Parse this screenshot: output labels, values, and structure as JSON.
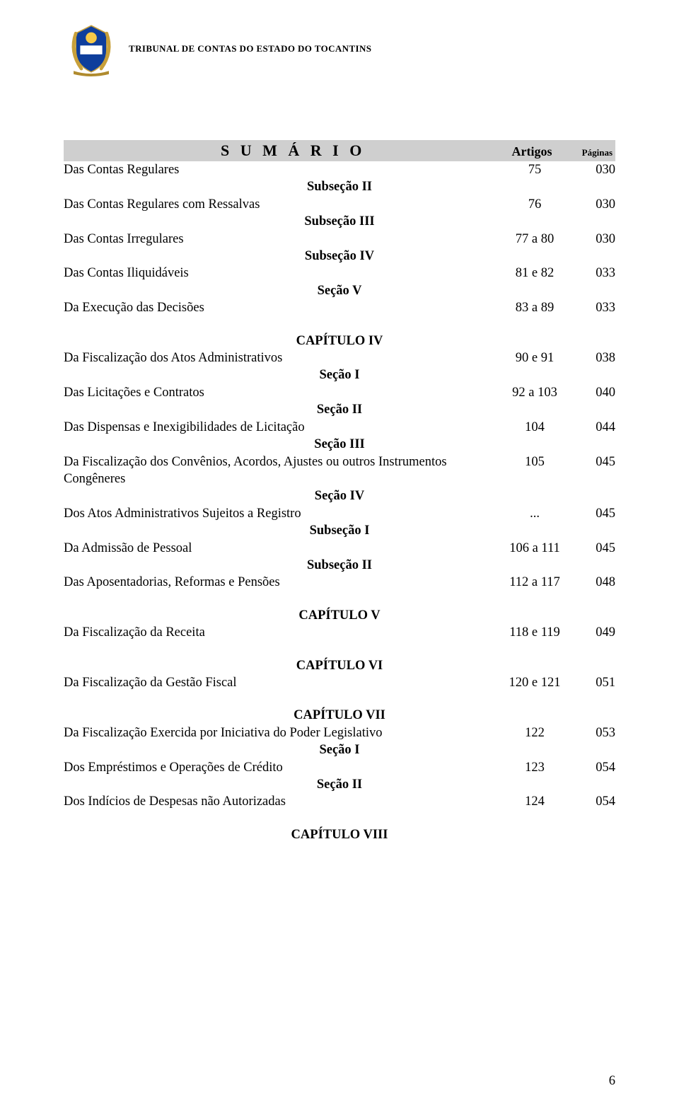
{
  "header": {
    "org_title": "TRIBUNAL DE CONTAS DO ESTADO DO TOCANTINS",
    "logo_colors": {
      "sun": "#f7c948",
      "blue": "#0e3e9c",
      "white": "#ffffff",
      "ribbon": "#b08b2e",
      "wreath": "#c8a03a"
    }
  },
  "title_bar": {
    "title": "S U M Á R I O",
    "col_art": "Artigos",
    "col_pag": "Páginas"
  },
  "lines": [
    {
      "kind": "row",
      "label": "Das Contas Regulares",
      "art": "75",
      "pag": "030"
    },
    {
      "kind": "heading",
      "text": "Subseção II"
    },
    {
      "kind": "row",
      "label": "Das Contas Regulares com Ressalvas",
      "art": "76",
      "pag": "030"
    },
    {
      "kind": "heading",
      "text": "Subseção III"
    },
    {
      "kind": "row",
      "label": "Das Contas Irregulares",
      "art": "77 a 80",
      "pag": "030"
    },
    {
      "kind": "heading",
      "text": "Subseção IV"
    },
    {
      "kind": "row",
      "label": "Das Contas Iliquidáveis",
      "art": "81 e 82",
      "pag": "033"
    },
    {
      "kind": "heading",
      "text": "Seção V"
    },
    {
      "kind": "row",
      "label": "Da Execução das Decisões",
      "art": "83 a 89",
      "pag": "033"
    },
    {
      "kind": "heading",
      "text": "CAPÍTULO IV",
      "gap": true
    },
    {
      "kind": "row",
      "label": "Da Fiscalização dos Atos Administrativos",
      "art": "90 e 91",
      "pag": "038"
    },
    {
      "kind": "heading",
      "text": "Seção I"
    },
    {
      "kind": "row",
      "label": "Das Licitações e Contratos",
      "art": "92 a 103",
      "pag": "040"
    },
    {
      "kind": "heading",
      "text": "Seção II"
    },
    {
      "kind": "row",
      "label": "Das Dispensas e Inexigibilidades de Licitação",
      "art": "104",
      "pag": "044"
    },
    {
      "kind": "heading",
      "text": "Seção III"
    },
    {
      "kind": "row",
      "label": "Da Fiscalização dos Convênios, Acordos, Ajustes ou outros Instrumentos Congêneres",
      "art": "105",
      "pag": "045"
    },
    {
      "kind": "heading",
      "text": "Seção IV"
    },
    {
      "kind": "row",
      "label": "Dos Atos Administrativos Sujeitos a Registro",
      "art": "...",
      "pag": "045"
    },
    {
      "kind": "heading",
      "text": "Subseção I"
    },
    {
      "kind": "row",
      "label": "Da Admissão de Pessoal",
      "art": "106 a 111",
      "pag": "045"
    },
    {
      "kind": "heading",
      "text": "Subseção II"
    },
    {
      "kind": "row",
      "label": "Das Aposentadorias, Reformas e Pensões",
      "art": "112 a 117",
      "pag": "048"
    },
    {
      "kind": "heading",
      "text": "CAPÍTULO V",
      "gap": true
    },
    {
      "kind": "row",
      "label": "Da Fiscalização da Receita",
      "art": "118 e 119",
      "pag": "049"
    },
    {
      "kind": "heading",
      "text": "CAPÍTULO VI",
      "gap": true
    },
    {
      "kind": "row",
      "label": "Da Fiscalização da Gestão Fiscal",
      "art": "120 e 121",
      "pag": "051"
    },
    {
      "kind": "heading",
      "text": "CAPÍTULO VII",
      "gap": true
    },
    {
      "kind": "row",
      "label": "Da Fiscalização Exercida por Iniciativa do Poder Legislativo",
      "art": "122",
      "pag": "053"
    },
    {
      "kind": "heading",
      "text": "Seção I"
    },
    {
      "kind": "row",
      "label": "Dos Empréstimos e Operações de Crédito",
      "art": "123",
      "pag": "054"
    },
    {
      "kind": "heading",
      "text": "Seção II"
    },
    {
      "kind": "row",
      "label": "Dos Indícios de Despesas não Autorizadas",
      "art": "124",
      "pag": "054"
    },
    {
      "kind": "heading",
      "text": "CAPÍTULO VIII",
      "gap": true
    }
  ],
  "page_number": "6"
}
